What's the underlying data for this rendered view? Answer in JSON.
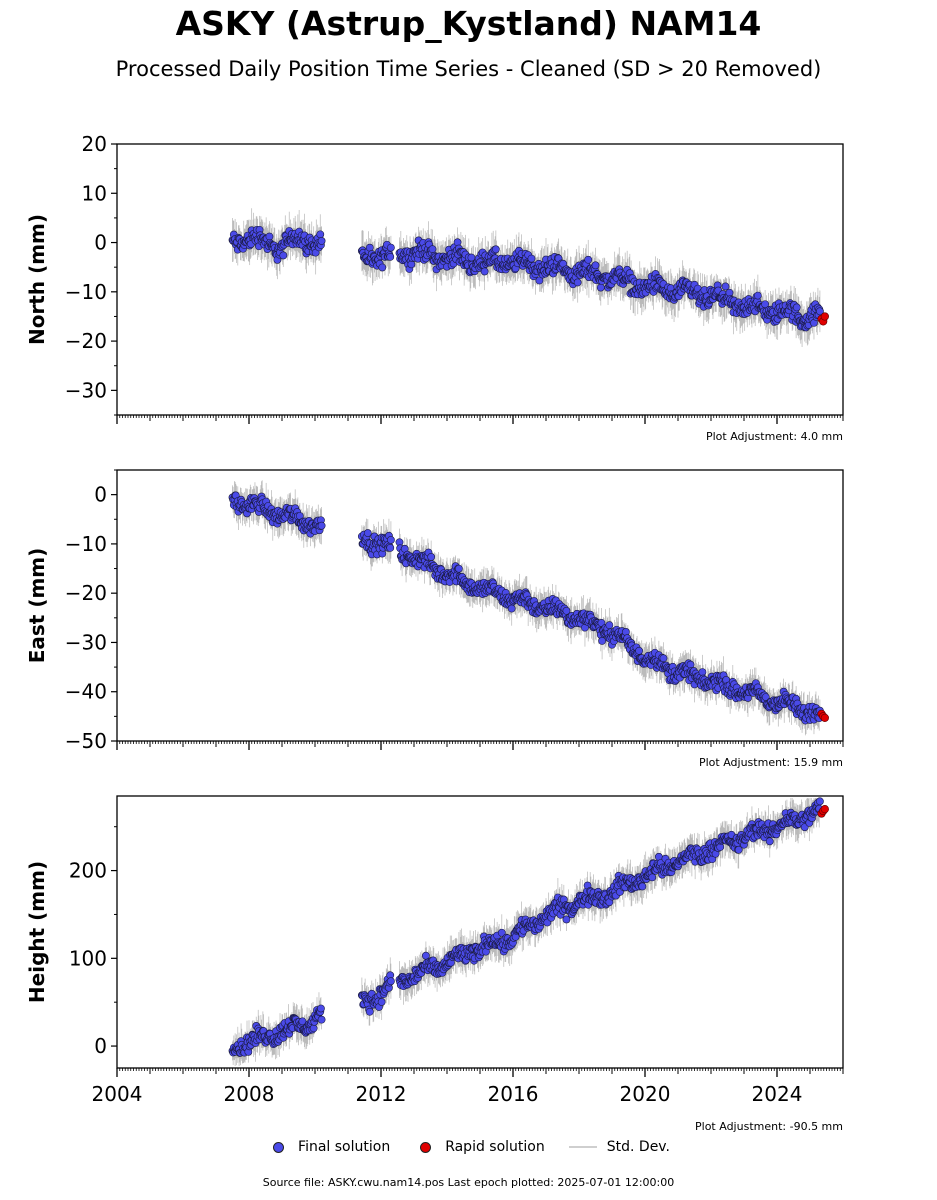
{
  "title": "ASKY (Astrup_Kystland) NAM14",
  "subtitle": "Processed Daily Position Time Series - Cleaned (SD > 20 Removed)",
  "legend": [
    {
      "label": "Final solution",
      "color": "#4a4ae8"
    },
    {
      "label": "Rapid solution",
      "color": "#e00000"
    },
    {
      "label": "Std. Dev.",
      "color": "#cfcfcf"
    }
  ],
  "footer": "Source file: ASKY.cwu.nam14.pos  Last epoch plotted: 2025-07-01 12:00:00",
  "chart_data": [
    {
      "type": "scatter",
      "ylabel": "North (mm)",
      "adjustment": "Plot Adjustment: 4.0 mm",
      "xlim": [
        2004,
        2026
      ],
      "ylim": [
        -35,
        20
      ],
      "yticks": [
        20,
        10,
        0,
        -10,
        -20,
        -30
      ],
      "yticklabels": [
        "20",
        "10",
        "0",
        "−10",
        "−20",
        "−30"
      ],
      "series": [
        {
          "name": "Final solution",
          "color": "#4a4ae8",
          "x": [
            2007.5,
            2008.0,
            2008.5,
            2009.0,
            2009.5,
            2010.0,
            2011.5,
            2012.0,
            2012.5,
            2013.0,
            2014.0,
            2015.0,
            2016.0,
            2017.0,
            2018.0,
            2019.0,
            2020.0,
            2021.0,
            2022.0,
            2023.0,
            2024.0,
            2025.0,
            2025.3
          ],
          "y": [
            0.0,
            1.0,
            0.0,
            -1.0,
            1.0,
            0.0,
            -3.0,
            -3.0,
            -2.0,
            -2.0,
            -3.0,
            -4.0,
            -4.0,
            -5.0,
            -6.0,
            -7.0,
            -9.0,
            -10.0,
            -11.0,
            -13.0,
            -14.0,
            -15.0,
            -15.0
          ]
        },
        {
          "name": "Rapid solution",
          "color": "#e00000",
          "x": [
            2025.35,
            2025.4,
            2025.45
          ],
          "y": [
            -15.5,
            -16.0,
            -15.0
          ]
        }
      ],
      "gaps": [
        [
          2010.2,
          2011.4
        ],
        [
          2012.3,
          2012.55
        ]
      ],
      "noise": 1.6
    },
    {
      "type": "scatter",
      "ylabel": "East (mm)",
      "adjustment": "Plot Adjustment: 15.9 mm",
      "xlim": [
        2004,
        2026
      ],
      "ylim": [
        -50,
        5
      ],
      "yticks": [
        0,
        -10,
        -20,
        -30,
        -40,
        -50
      ],
      "yticklabels": [
        "0",
        "−10",
        "−20",
        "−30",
        "−40",
        "−50"
      ],
      "series": [
        {
          "name": "Final solution",
          "color": "#4a4ae8",
          "x": [
            2007.5,
            2008.0,
            2008.5,
            2009.0,
            2009.5,
            2010.0,
            2011.5,
            2012.0,
            2012.5,
            2013.0,
            2014.0,
            2015.0,
            2016.0,
            2017.0,
            2018.0,
            2019.0,
            2020.0,
            2021.0,
            2022.0,
            2023.0,
            2024.0,
            2025.0,
            2025.3
          ],
          "y": [
            -1.0,
            -2.0,
            -3.0,
            -4.0,
            -5.0,
            -6.0,
            -9.0,
            -10.0,
            -11.0,
            -13.0,
            -16.0,
            -19.0,
            -21.0,
            -23.0,
            -25.0,
            -28.0,
            -33.0,
            -36.0,
            -38.0,
            -40.0,
            -42.0,
            -44.0,
            -45.0
          ]
        },
        {
          "name": "Rapid solution",
          "color": "#e00000",
          "x": [
            2025.35,
            2025.4,
            2025.45
          ],
          "y": [
            -44.5,
            -45.0,
            -45.3
          ]
        }
      ],
      "gaps": [
        [
          2010.2,
          2011.4
        ],
        [
          2012.3,
          2012.55
        ]
      ],
      "noise": 1.4
    },
    {
      "type": "scatter",
      "ylabel": "Height (mm)",
      "adjustment": "Plot Adjustment: -90.5 mm",
      "xlim": [
        2004,
        2026
      ],
      "ylim": [
        -25,
        285
      ],
      "yticks": [
        200,
        100,
        0
      ],
      "yticklabels": [
        "200",
        "100",
        "0"
      ],
      "xticks": [
        2004,
        2008,
        2012,
        2016,
        2020,
        2024
      ],
      "xticklabels": [
        "2004",
        "2008",
        "2012",
        "2016",
        "2020",
        "2024"
      ],
      "series": [
        {
          "name": "Final solution",
          "color": "#4a4ae8",
          "x": [
            2007.5,
            2008.0,
            2008.5,
            2009.0,
            2009.5,
            2010.0,
            2011.5,
            2012.0,
            2012.5,
            2013.0,
            2014.0,
            2015.0,
            2016.0,
            2017.0,
            2018.0,
            2019.0,
            2020.0,
            2021.0,
            2022.0,
            2023.0,
            2024.0,
            2025.0,
            2025.3
          ],
          "y": [
            0,
            5,
            10,
            18,
            22,
            30,
            52,
            60,
            75,
            80,
            95,
            112,
            125,
            148,
            165,
            175,
            195,
            210,
            225,
            238,
            250,
            265,
            268
          ]
        },
        {
          "name": "Rapid solution",
          "color": "#e00000",
          "x": [
            2025.35,
            2025.4,
            2025.45
          ],
          "y": [
            265,
            268,
            270
          ]
        }
      ],
      "gaps": [
        [
          2010.2,
          2011.4
        ],
        [
          2012.3,
          2012.55
        ]
      ],
      "noise": 8
    }
  ]
}
